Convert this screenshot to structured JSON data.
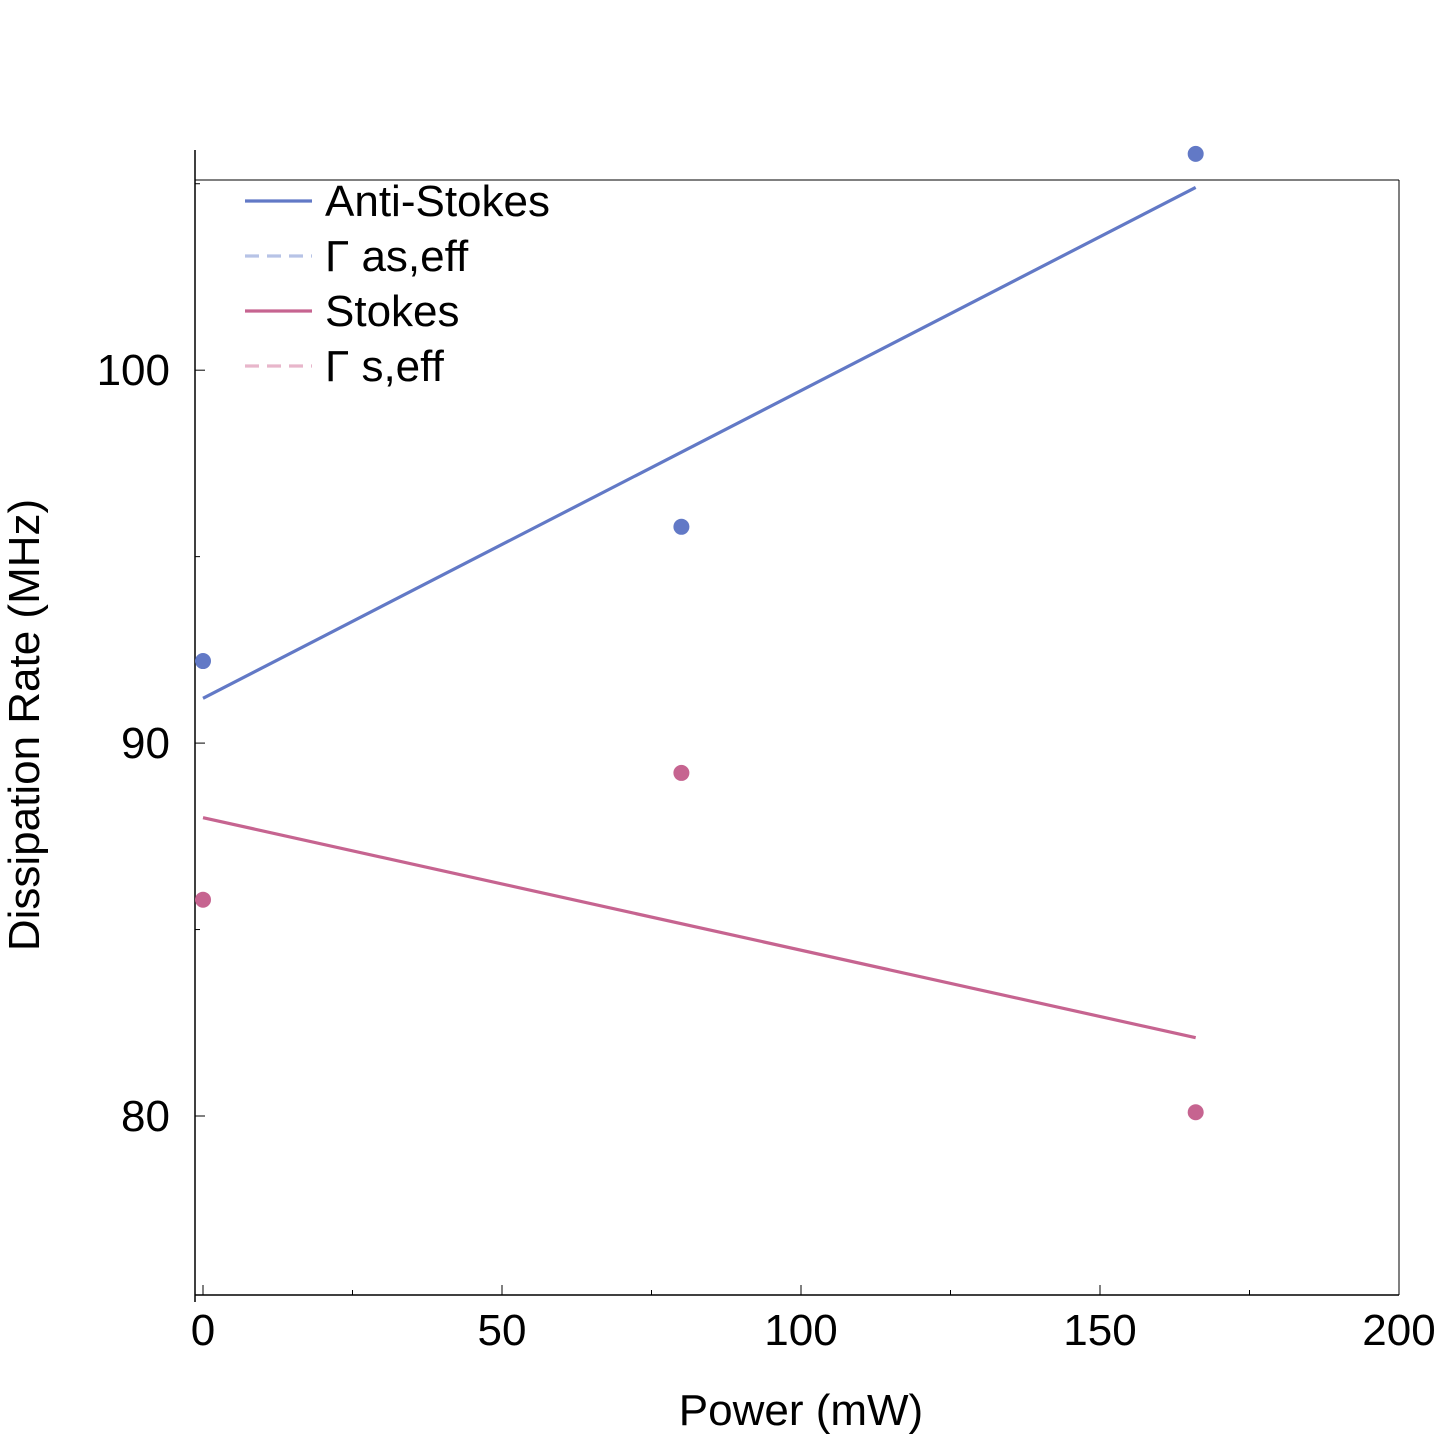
{
  "chart_data": {
    "type": "scatter",
    "xlabel": "Power (mW)",
    "ylabel": "Dissipation Rate (MHz)",
    "xlim": [
      0,
      200
    ],
    "ylim": [
      75.2,
      105.1
    ],
    "x_ticks": [
      0,
      50,
      100,
      150,
      200
    ],
    "y_ticks": [
      80,
      90,
      100
    ],
    "grid": false,
    "legend_position": "top-left",
    "series": [
      {
        "name": "Anti-Stokes",
        "kind": "points",
        "color": "#6279c6",
        "x": [
          0,
          80,
          166
        ],
        "y": [
          92.2,
          95.8,
          105.8
        ]
      },
      {
        "name": "Anti-Stokes",
        "kind": "line",
        "color": "#6279c6",
        "x": [
          0,
          166
        ],
        "y": [
          91.2,
          104.9
        ]
      },
      {
        "name": "Γ as,eff",
        "kind": "dashed-line",
        "color": "#b7c3e6",
        "x": [],
        "y": []
      },
      {
        "name": "Stokes",
        "kind": "points",
        "color": "#c66490",
        "x": [
          0,
          80,
          166
        ],
        "y": [
          85.8,
          89.2,
          80.1
        ]
      },
      {
        "name": "Stokes",
        "kind": "line",
        "color": "#c66490",
        "x": [
          0,
          166
        ],
        "y": [
          88.0,
          82.1
        ]
      },
      {
        "name": "Γ s,eff",
        "kind": "dashed-line",
        "color": "#e8b6cb",
        "x": [],
        "y": []
      }
    ],
    "legend": [
      {
        "label": "Anti-Stokes",
        "color": "#6279c6",
        "dash": false
      },
      {
        "label": "Γ as,eff",
        "color": "#b7c3e6",
        "dash": true
      },
      {
        "label": "Stokes",
        "color": "#c66490",
        "dash": false
      },
      {
        "label": "Γ s,eff",
        "color": "#e8b6cb",
        "dash": true
      }
    ]
  }
}
